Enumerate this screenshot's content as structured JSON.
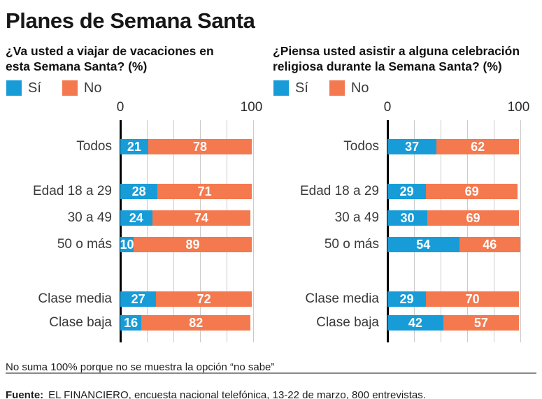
{
  "title": "Planes de Semana Santa",
  "colors": {
    "yes": "#189CD8",
    "no": "#F4794E",
    "grid": "#CBCBCB",
    "axis": "#000000"
  },
  "footnote": "No suma 100% porque no se muestra la opción “no sabe”",
  "source": {
    "label": "Fuente:",
    "text": "EL FINANCIERO, encuesta nacional telefónica, 13-22 de marzo, 800 entrevistas."
  },
  "chart_data": [
    {
      "type": "bar",
      "orientation": "horizontal",
      "stacked": true,
      "title": "¿Va usted a viajar de vacaciones en esta Semana Santa? (%)",
      "title_lines": [
        "¿Va usted a viajar de vacaciones en",
        "esta Semana Santa? (%)"
      ],
      "categories": [
        "Todos",
        "Edad 18 a 29",
        "30 a 49",
        "50 o más",
        "Clase media",
        "Clase baja"
      ],
      "series": [
        {
          "name": "Sí",
          "color_key": "yes",
          "values": [
            21,
            28,
            24,
            10,
            27,
            16
          ]
        },
        {
          "name": "No",
          "color_key": "no",
          "values": [
            78,
            71,
            74,
            89,
            72,
            82
          ]
        }
      ],
      "xlim": [
        0,
        100
      ],
      "ticks": [
        "0",
        "100"
      ],
      "gridlines": [
        20,
        40,
        60,
        80,
        100
      ],
      "legend_position": "top-left",
      "grid": true
    },
    {
      "type": "bar",
      "orientation": "horizontal",
      "stacked": true,
      "title": "¿Piensa usted asistir a alguna celebración religiosa durante la Semana Santa? (%)",
      "title_lines": [
        "¿Piensa usted asistir a alguna celebración",
        "religiosa durante la Semana Santa? (%)"
      ],
      "categories": [
        "Todos",
        "Edad 18 a 29",
        "30 a 49",
        "50 o más",
        "Clase media",
        "Clase baja"
      ],
      "series": [
        {
          "name": "Sí",
          "color_key": "yes",
          "values": [
            37,
            29,
            30,
            54,
            29,
            42
          ]
        },
        {
          "name": "No",
          "color_key": "no",
          "values": [
            62,
            69,
            69,
            46,
            70,
            57
          ]
        }
      ],
      "xlim": [
        0,
        100
      ],
      "ticks": [
        "0",
        "100"
      ],
      "gridlines": [
        20,
        40,
        60,
        80,
        100
      ],
      "legend_position": "top-left",
      "grid": true
    }
  ]
}
